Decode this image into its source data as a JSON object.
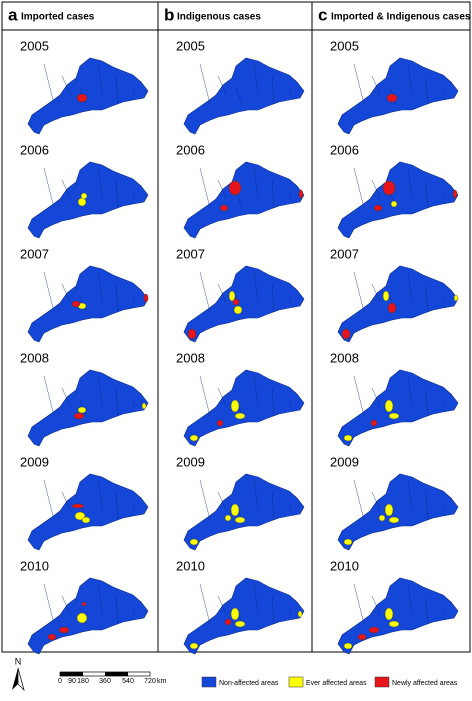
{
  "columns": [
    {
      "letter": "a",
      "title": "Imported cases"
    },
    {
      "letter": "b",
      "title": "Indigenous cases"
    },
    {
      "letter": "c",
      "title": "Imported & Indigenous cases"
    }
  ],
  "years": [
    "2005",
    "2006",
    "2007",
    "2008",
    "2009",
    "2010"
  ],
  "north": "N",
  "scale": {
    "ticks": [
      "0",
      "90",
      "180",
      "360",
      "540",
      "720"
    ],
    "unit": "km"
  },
  "legend": [
    {
      "label": "Non-affected areas",
      "color": "#1447d8"
    },
    {
      "label": "Ever affected areas",
      "color": "#ffff00"
    },
    {
      "label": "Newly affected areas",
      "color": "#e8141c"
    }
  ]
}
